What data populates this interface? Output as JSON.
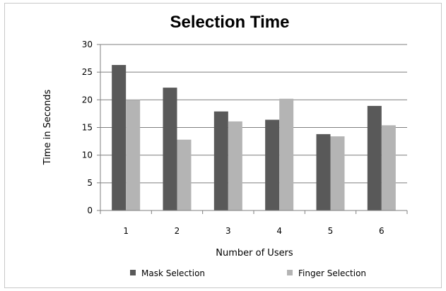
{
  "chart_data": {
    "type": "bar",
    "title": "Selection Time",
    "xlabel": "Number of Users",
    "ylabel": "Time in Seconds",
    "categories": [
      "1",
      "2",
      "3",
      "4",
      "5",
      "6"
    ],
    "series": [
      {
        "name": "Mask Selection",
        "color": "#595959",
        "values": [
          26.3,
          22.2,
          17.9,
          16.4,
          13.8,
          18.9
        ]
      },
      {
        "name": "Finger Selection",
        "color": "#b4b4b4",
        "values": [
          20.0,
          12.8,
          16.1,
          20.2,
          13.4,
          15.4
        ]
      }
    ],
    "ylim": [
      0,
      30
    ],
    "yticks": [
      0,
      5,
      10,
      15,
      20,
      25,
      30
    ],
    "grid": true,
    "legend": "bottom"
  }
}
